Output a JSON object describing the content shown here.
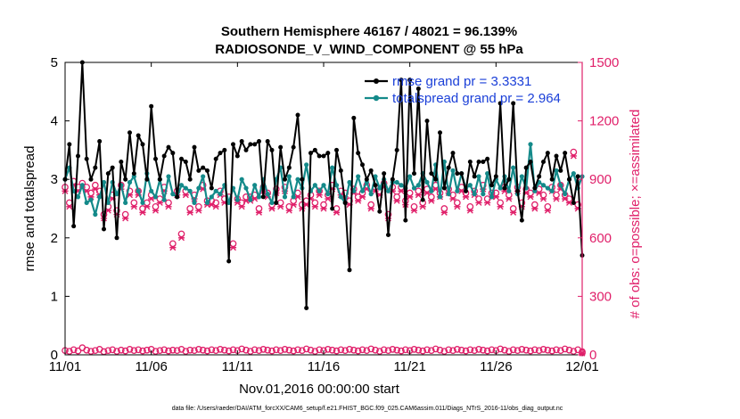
{
  "chart_data": {
    "type": "line",
    "title": "Southern Hemisphere 46167 / 48021 = 96.139%",
    "subtitle": "RADIOSONDE_V_WIND_COMPONENT @ 55 hPa",
    "xlabel": "Nov.01,2016 00:00:00 start",
    "ylabel_left": "rmse and totalspread",
    "ylabel_right": "# of obs: o=possible; ×=assimilated",
    "footnote": "data file: /Users/raeder/DAI/ATM_forcXX/CAM6_setup/f.e21.FHIST_BGC.f09_025.CAM6assim.011/Diags_NTrS_2016-11/obs_diag_output.nc",
    "x_ticks": [
      "11/01",
      "11/06",
      "11/11",
      "11/16",
      "11/21",
      "11/26",
      "12/01"
    ],
    "xlim": [
      0,
      30
    ],
    "y_left_ticks": [
      "0",
      "1",
      "2",
      "3",
      "4",
      "5"
    ],
    "ylim_left": [
      0,
      5
    ],
    "y_right_ticks": [
      "0",
      "300",
      "600",
      "900",
      "1200",
      "1500"
    ],
    "ylim_right": [
      0,
      1500
    ],
    "colors": {
      "rmse": "#000000",
      "spread": "#148a8a",
      "obs": "#e0206a",
      "legend_text": "#1a3fd8"
    },
    "legend": [
      "rmse grand pr = 3.3331",
      "totalspread grand pr = 2.964"
    ],
    "x": [
      0.0,
      0.25,
      0.5,
      0.75,
      1.0,
      1.25,
      1.5,
      1.75,
      2.0,
      2.25,
      2.5,
      2.75,
      3.0,
      3.25,
      3.5,
      3.75,
      4.0,
      4.25,
      4.5,
      4.75,
      5.0,
      5.25,
      5.5,
      5.75,
      6.0,
      6.25,
      6.5,
      6.75,
      7.0,
      7.25,
      7.5,
      7.75,
      8.0,
      8.25,
      8.5,
      8.75,
      9.0,
      9.25,
      9.5,
      9.75,
      10.0,
      10.25,
      10.5,
      10.75,
      11.0,
      11.25,
      11.5,
      11.75,
      12.0,
      12.25,
      12.5,
      12.75,
      13.0,
      13.25,
      13.5,
      13.75,
      14.0,
      14.25,
      14.5,
      14.75,
      15.0,
      15.25,
      15.5,
      15.75,
      16.0,
      16.25,
      16.5,
      16.75,
      17.0,
      17.25,
      17.5,
      17.75,
      18.0,
      18.25,
      18.5,
      18.75,
      19.0,
      19.25,
      19.5,
      19.75,
      20.0,
      20.25,
      20.5,
      20.75,
      21.0,
      21.25,
      21.5,
      21.75,
      22.0,
      22.25,
      22.5,
      22.75,
      23.0,
      23.25,
      23.5,
      23.75,
      24.0,
      24.25,
      24.5,
      24.75,
      25.0,
      25.25,
      25.5,
      25.75,
      26.0,
      26.25,
      26.5,
      26.75,
      27.0,
      27.25,
      27.5,
      27.75,
      28.0,
      28.25,
      28.5,
      28.75,
      29.0,
      29.25,
      29.5,
      29.75,
      30.0
    ],
    "series": [
      {
        "name": "rmse",
        "marker": "asterisk",
        "values": [
          3.0,
          3.6,
          2.2,
          3.4,
          5.0,
          3.35,
          3.0,
          3.2,
          3.65,
          2.15,
          3.1,
          3.2,
          2.0,
          3.3,
          3.0,
          3.8,
          3.1,
          3.75,
          3.6,
          3.0,
          4.25,
          3.35,
          3.0,
          3.4,
          3.55,
          3.45,
          2.7,
          3.35,
          3.3,
          3.0,
          3.55,
          3.15,
          3.2,
          3.15,
          2.85,
          3.35,
          3.45,
          3.5,
          1.6,
          3.6,
          3.4,
          3.65,
          3.5,
          3.6,
          3.6,
          3.65,
          2.7,
          3.65,
          3.5,
          2.6,
          3.55,
          3.0,
          3.2,
          3.55,
          4.1,
          3.0,
          0.8,
          3.45,
          3.5,
          3.4,
          3.4,
          3.45,
          2.5,
          3.5,
          3.15,
          2.6,
          1.45,
          4.05,
          3.45,
          3.25,
          3.0,
          3.15,
          2.9,
          2.45,
          3.1,
          2.05,
          3.0,
          3.5,
          4.7,
          2.3,
          4.7,
          3.1,
          4.55,
          2.65,
          4.0,
          3.1,
          3.0,
          3.8,
          2.85,
          3.2,
          3.45,
          3.1,
          3.1,
          2.8,
          3.3,
          3.05,
          3.3,
          3.3,
          3.35,
          2.9,
          3.05,
          4.3,
          2.85,
          3.0,
          4.3,
          2.8,
          2.3,
          3.2,
          3.3,
          2.85,
          3.05,
          3.3,
          3.45,
          3.0,
          3.4,
          3.15,
          3.45,
          3.0,
          2.6,
          3.05,
          1.7
        ]
      },
      {
        "name": "totalspread",
        "marker": "dot",
        "values": [
          3.0,
          3.2,
          2.8,
          2.7,
          2.9,
          2.6,
          2.65,
          2.4,
          2.7,
          2.95,
          2.6,
          2.95,
          2.75,
          2.9,
          2.6,
          2.95,
          3.05,
          2.8,
          2.6,
          3.1,
          2.8,
          2.7,
          3.0,
          2.65,
          3.05,
          2.75,
          2.7,
          2.9,
          2.85,
          2.8,
          2.6,
          2.85,
          3.05,
          2.6,
          2.7,
          2.8,
          2.75,
          2.9,
          2.6,
          2.85,
          2.65,
          3.0,
          2.85,
          2.65,
          2.9,
          2.7,
          3.0,
          2.75,
          2.6,
          3.0,
          3.2,
          2.7,
          3.05,
          2.7,
          3.0,
          2.85,
          3.25,
          2.8,
          2.9,
          2.8,
          2.9,
          2.75,
          3.2,
          2.9,
          2.7,
          2.6,
          2.95,
          2.8,
          3.05,
          2.8,
          2.95,
          2.75,
          3.05,
          2.85,
          3.0,
          2.8,
          2.95,
          2.95,
          2.9,
          2.85,
          3.05,
          2.85,
          2.9,
          3.1,
          2.95,
          2.8,
          3.25,
          2.7,
          3.3,
          2.75,
          3.15,
          2.8,
          3.1,
          2.85,
          2.9,
          2.75,
          3.05,
          2.75,
          3.1,
          2.7,
          3.0,
          2.85,
          3.05,
          2.8,
          3.2,
          2.75,
          3.05,
          2.85,
          3.6,
          2.8,
          2.95,
          2.9,
          2.85,
          2.8,
          3.15,
          2.9,
          2.75,
          3.0,
          3.1,
          2.85,
          3.05
        ]
      },
      {
        "name": "obs_possible",
        "marker": "circle",
        "axis": "right",
        "values": [
          860,
          780,
          890,
          860,
          880,
          860,
          830,
          870,
          840,
          720,
          760,
          820,
          740,
          870,
          720,
          840,
          780,
          840,
          750,
          780,
          820,
          760,
          800,
          860,
          780,
          570,
          840,
          620,
          840,
          750,
          820,
          760,
          870,
          790,
          790,
          780,
          840,
          800,
          810,
          570,
          800,
          780,
          810,
          810,
          820,
          750,
          860,
          830,
          770,
          850,
          780,
          860,
          760,
          790,
          830,
          770,
          790,
          820,
          780,
          840,
          770,
          820,
          870,
          750,
          840,
          830,
          790,
          850,
          810,
          830,
          870,
          770,
          860,
          840,
          880,
          720,
          860,
          810,
          860,
          790,
          830,
          760,
          840,
          780,
          850,
          810,
          870,
          830,
          750,
          850,
          820,
          780,
          860,
          830,
          760,
          840,
          800,
          870,
          800,
          830,
          830,
          780,
          860,
          820,
          750,
          860,
          780,
          850,
          830,
          770,
          850,
          820,
          760,
          860,
          820,
          870,
          820,
          800,
          1040,
          770,
          10
        ]
      },
      {
        "name": "obs_assimilated",
        "marker": "x",
        "axis": "right",
        "values": [
          840,
          760,
          870,
          840,
          860,
          840,
          810,
          850,
          820,
          700,
          740,
          800,
          720,
          850,
          700,
          820,
          760,
          820,
          730,
          760,
          800,
          740,
          780,
          840,
          760,
          550,
          820,
          600,
          820,
          730,
          800,
          740,
          850,
          770,
          770,
          760,
          820,
          780,
          790,
          550,
          780,
          760,
          790,
          790,
          800,
          730,
          840,
          810,
          750,
          830,
          760,
          840,
          740,
          770,
          810,
          750,
          770,
          800,
          760,
          820,
          750,
          800,
          850,
          730,
          820,
          810,
          770,
          830,
          790,
          810,
          850,
          750,
          840,
          820,
          860,
          700,
          840,
          790,
          840,
          770,
          810,
          740,
          820,
          760,
          830,
          790,
          850,
          810,
          730,
          830,
          800,
          760,
          840,
          810,
          740,
          820,
          780,
          850,
          780,
          810,
          810,
          760,
          840,
          800,
          730,
          840,
          760,
          830,
          810,
          750,
          830,
          800,
          740,
          840,
          800,
          850,
          800,
          780,
          1020,
          750,
          8
        ]
      },
      {
        "name": "obs_rejected_baseline",
        "marker": "x",
        "axis": "right",
        "values": [
          22,
          18,
          26,
          20,
          36,
          24,
          18,
          22,
          28,
          16,
          22,
          26,
          18,
          24,
          20,
          28,
          22,
          26,
          20,
          24,
          28,
          18,
          22,
          26,
          20,
          24,
          22,
          28,
          18,
          24,
          22,
          28,
          24,
          20,
          26,
          22,
          28,
          24,
          20,
          26,
          22,
          30,
          24,
          18,
          26,
          22,
          28,
          24,
          20,
          26,
          22,
          28,
          24,
          20,
          26,
          22,
          30,
          24,
          18,
          26,
          22,
          28,
          24,
          20,
          26,
          22,
          28,
          24,
          20,
          26,
          22,
          30,
          24,
          18,
          26,
          22,
          28,
          24,
          20,
          26,
          22,
          28,
          24,
          20,
          26,
          22,
          30,
          24,
          18,
          26,
          22,
          28,
          24,
          20,
          26,
          22,
          28,
          24,
          20,
          26,
          22,
          30,
          24,
          18,
          26,
          22,
          28,
          24,
          20,
          26,
          22,
          28,
          24,
          20,
          26,
          22,
          30,
          24,
          18,
          26,
          16
        ]
      }
    ]
  }
}
